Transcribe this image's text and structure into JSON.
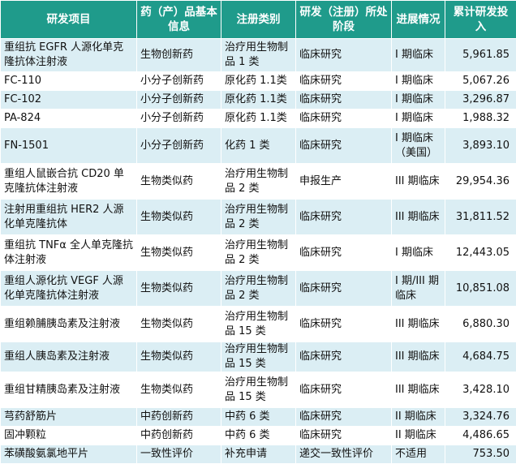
{
  "headers": {
    "project": "研发项目",
    "basic_info": "药（产）品基本信息",
    "reg_category": "注册类别",
    "stage": "研发（注册）所处阶段",
    "progress": "进展情况",
    "investment": "累计研发投入"
  },
  "rows": [
    {
      "project": "重组抗 EGFR 人源化单克隆抗体注射液",
      "basic_info": "生物创新药",
      "reg_category": "治疗用生物制品 1 类",
      "stage": "临床研究",
      "progress": "I 期临床",
      "investment": "5,961.85"
    },
    {
      "project": "FC-110",
      "basic_info": "小分子创新药",
      "reg_category": "原化药 1.1类",
      "stage": "临床研究",
      "progress": "I 期临床",
      "investment": "5,067.26"
    },
    {
      "project": "FC-102",
      "basic_info": "小分子创新药",
      "reg_category": "原化药 1.1类",
      "stage": "临床研究",
      "progress": "I 期临床",
      "investment": "3,296.87"
    },
    {
      "project": "PA-824",
      "basic_info": "小分子创新药",
      "reg_category": "原化药 1.1类",
      "stage": "临床研究",
      "progress": "I 期临床",
      "investment": "1,988.32"
    },
    {
      "project": "FN-1501",
      "basic_info": "小分子创新药",
      "reg_category": "化药 1 类",
      "stage": "临床研究",
      "progress": "I 期临床（美国）",
      "investment": "3,893.10"
    },
    {
      "project": "重组人鼠嵌合抗 CD20 单克隆抗体注射液",
      "basic_info": "生物类似药",
      "reg_category": "治疗用生物制品 2 类",
      "stage": "申报生产",
      "progress": "III 期临床",
      "investment": "29,954.36"
    },
    {
      "project": "注射用重组抗 HER2 人源化单克隆抗体",
      "basic_info": "生物类似药",
      "reg_category": "治疗用生物制品 2 类",
      "stage": "临床研究",
      "progress": "III 期临床",
      "investment": "31,811.52"
    },
    {
      "project": "重组抗 TNFα 全人单克隆抗体注射液",
      "basic_info": "生物类似药",
      "reg_category": "治疗用生物制品 2 类",
      "stage": "临床研究",
      "progress": "I 期临床",
      "investment": "12,443.05"
    },
    {
      "project": "重组人源化抗 VEGF 人源化单克隆抗体注射液",
      "basic_info": "生物类似药",
      "reg_category": "治疗用生物制品 2 类",
      "stage": "临床研究",
      "progress": "I 期/III 期临床",
      "investment": "10,851.08"
    },
    {
      "project": "重组赖脯胰岛素及注射液",
      "basic_info": "生物类似药",
      "reg_category": "治疗用生物制品 15 类",
      "stage": "临床研究",
      "progress": "III 期临床",
      "investment": "6,880.30"
    },
    {
      "project": "重组人胰岛素及注射液",
      "basic_info": "生物类似药",
      "reg_category": "治疗用生物制品 15 类",
      "stage": "临床研究",
      "progress": "III 期临床",
      "investment": "4,684.75"
    },
    {
      "project": "重组甘精胰岛素及注射液",
      "basic_info": "生物类似药",
      "reg_category": "治疗用生物制品 15 类",
      "stage": "临床研究",
      "progress": "III 期临床",
      "investment": "3,428.10"
    },
    {
      "project": "芎药舒筋片",
      "basic_info": "中药创新药",
      "reg_category": "中药 6 类",
      "stage": "临床研究",
      "progress": "II 期临床",
      "investment": "3,324.76"
    },
    {
      "project": "固冲颗粒",
      "basic_info": "中药创新药",
      "reg_category": "中药 6 类",
      "stage": "临床研究",
      "progress": "II 期临床",
      "investment": "4,486.65"
    },
    {
      "project": "苯磺酸氨氯地平片",
      "basic_info": "一致性评价",
      "reg_category": "补充申请",
      "stage": "递交一致性评价",
      "progress": "不适用",
      "investment": "753.50"
    }
  ]
}
